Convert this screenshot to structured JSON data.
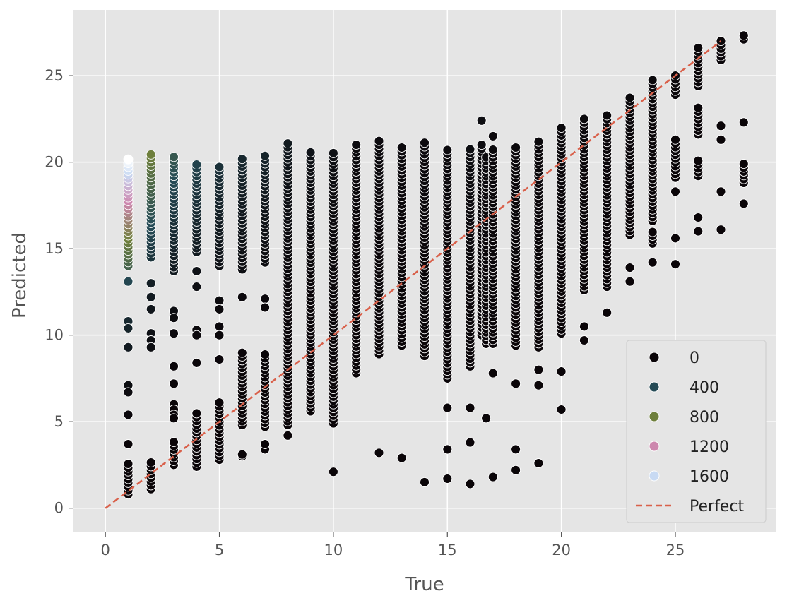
{
  "chart_data": {
    "type": "scatter",
    "title": "",
    "xlabel": "True",
    "ylabel": "Predicted",
    "xlim": [
      -1.4,
      29.4
    ],
    "ylim": [
      -1.4,
      28.8
    ],
    "xticks": [
      0,
      5,
      10,
      15,
      20,
      25
    ],
    "yticks": [
      0,
      5,
      10,
      15,
      20,
      25
    ],
    "grid": true,
    "background": "#e5e5e5",
    "hue_variable": "count",
    "legend": {
      "position": "lower right",
      "entries": [
        {
          "label": "0",
          "color": "#0a0508",
          "kind": "point"
        },
        {
          "label": "400",
          "color": "#254b56",
          "kind": "point"
        },
        {
          "label": "800",
          "color": "#6e7f3c",
          "kind": "point"
        },
        {
          "label": "1200",
          "color": "#cd87ae",
          "kind": "point"
        },
        {
          "label": "1600",
          "color": "#c8daf3",
          "kind": "point"
        },
        {
          "label": "Perfect",
          "color": "#d9604a",
          "kind": "dashed-line"
        }
      ]
    },
    "reference_line": {
      "name": "Perfect",
      "from": [
        0,
        0
      ],
      "to": [
        27,
        27
      ],
      "color": "#d9604a",
      "style": "dashed"
    },
    "colormap": [
      {
        "stop": 0,
        "color": "#0a0508"
      },
      {
        "stop": 400,
        "color": "#254b56"
      },
      {
        "stop": 800,
        "color": "#6e7f3c"
      },
      {
        "stop": 1200,
        "color": "#cd87ae"
      },
      {
        "stop": 1600,
        "color": "#c8daf3"
      },
      {
        "stop": 1800,
        "color": "#ffffff"
      }
    ],
    "columns": [
      {
        "x": 1,
        "hue_range": [
          1800,
          0
        ],
        "dense": [
          [
            14.0,
            20.2
          ],
          [
            0.8,
            2.6
          ]
        ],
        "singles": [
          13.1,
          10.8,
          10.4,
          9.3,
          7.1,
          6.7,
          5.4,
          3.7
        ]
      },
      {
        "x": 2,
        "hue_range": [
          800,
          0
        ],
        "dense": [
          [
            14.5,
            20.6
          ],
          [
            1.1,
            2.8
          ]
        ],
        "singles": [
          13.0,
          12.2,
          11.5,
          10.1,
          9.7,
          9.3
        ]
      },
      {
        "x": 3,
        "hue_range": [
          500,
          0
        ],
        "dense": [
          [
            13.7,
            20.5
          ],
          [
            2.5,
            3.9
          ]
        ],
        "singles": [
          11.4,
          11.0,
          10.1,
          8.2,
          7.2,
          6.0,
          5.7,
          5.4,
          5.2
        ]
      },
      {
        "x": 4,
        "hue_range": [
          350,
          0
        ],
        "dense": [
          [
            14.8,
            20.0
          ],
          [
            2.4,
            5.6
          ]
        ],
        "singles": [
          13.7,
          12.8,
          10.3,
          10.0,
          8.4
        ]
      },
      {
        "x": 5,
        "hue_range": [
          250,
          0
        ],
        "dense": [
          [
            14.0,
            19.8
          ],
          [
            2.8,
            6.2
          ]
        ],
        "singles": [
          12.0,
          11.5,
          10.5,
          10.0,
          8.6
        ]
      },
      {
        "x": 6,
        "hue_range": [
          200,
          0
        ],
        "dense": [
          [
            13.8,
            20.3
          ],
          [
            4.8,
            9.0
          ]
        ],
        "singles": [
          12.2,
          3.0,
          3.1
        ]
      },
      {
        "x": 7,
        "hue_range": [
          180,
          0
        ],
        "dense": [
          [
            14.2,
            20.4
          ],
          [
            4.7,
            9.0
          ]
        ],
        "singles": [
          12.1,
          11.6,
          3.4,
          3.7
        ]
      },
      {
        "x": 8,
        "hue_range": [
          120,
          0
        ],
        "dense": [
          [
            4.8,
            21.1
          ]
        ],
        "singles": [
          4.2
        ]
      },
      {
        "x": 9,
        "hue_range": [
          80,
          0
        ],
        "dense": [
          [
            5.6,
            20.7
          ]
        ],
        "singles": []
      },
      {
        "x": 10,
        "hue_range": [
          60,
          0
        ],
        "dense": [
          [
            4.9,
            20.6
          ]
        ],
        "singles": [
          2.1
        ]
      },
      {
        "x": 11,
        "hue_range": [
          40,
          0
        ],
        "dense": [
          [
            7.8,
            21.0
          ]
        ],
        "singles": []
      },
      {
        "x": 12,
        "hue_range": [
          30,
          0
        ],
        "dense": [
          [
            8.9,
            21.3
          ]
        ],
        "singles": [
          3.2
        ]
      },
      {
        "x": 13,
        "hue_range": [
          30,
          0
        ],
        "dense": [
          [
            9.4,
            21.0
          ]
        ],
        "singles": [
          2.9
        ]
      },
      {
        "x": 14,
        "hue_range": [
          30,
          0
        ],
        "dense": [
          [
            8.8,
            21.3
          ]
        ],
        "singles": [
          1.5
        ]
      },
      {
        "x": 15,
        "hue_range": [
          30,
          0
        ],
        "dense": [
          [
            7.5,
            20.9
          ]
        ],
        "singles": [
          5.8,
          3.4,
          1.7
        ]
      },
      {
        "x": 16,
        "hue_range": [
          50,
          0
        ],
        "dense": [
          [
            8.2,
            20.9
          ]
        ],
        "singles": [
          5.8,
          3.8,
          1.4
        ]
      },
      {
        "x": 16.5,
        "hue_range": [
          60,
          0
        ],
        "dense": [
          [
            10.0,
            21.0
          ]
        ],
        "singles": [
          22.4
        ]
      },
      {
        "x": 16.7,
        "hue_range": [
          40,
          0
        ],
        "dense": [
          [
            9.5,
            20.3
          ]
        ],
        "singles": [
          5.2
        ]
      },
      {
        "x": 17,
        "hue_range": [
          30,
          0
        ],
        "dense": [
          [
            9.5,
            20.9
          ]
        ],
        "singles": [
          21.5,
          7.8,
          1.8
        ]
      },
      {
        "x": 18,
        "hue_range": [
          20,
          0
        ],
        "dense": [
          [
            9.4,
            20.9
          ]
        ],
        "singles": [
          7.2,
          3.4,
          2.2
        ]
      },
      {
        "x": 19,
        "hue_range": [
          20,
          0
        ],
        "dense": [
          [
            9.3,
            21.3
          ]
        ],
        "singles": [
          8.0,
          7.1,
          2.6
        ]
      },
      {
        "x": 20,
        "hue_range": [
          20,
          0
        ],
        "dense": [
          [
            10.1,
            22.0
          ]
        ],
        "singles": [
          7.9,
          5.7
        ]
      },
      {
        "x": 21,
        "hue_range": [
          20,
          0
        ],
        "dense": [
          [
            12.6,
            22.5
          ]
        ],
        "singles": [
          10.5,
          9.7
        ]
      },
      {
        "x": 22,
        "hue_range": [
          20,
          0
        ],
        "dense": [
          [
            12.8,
            22.8
          ]
        ],
        "singles": [
          11.3
        ]
      },
      {
        "x": 23,
        "hue_range": [
          20,
          0
        ],
        "dense": [
          [
            15.8,
            23.8
          ]
        ],
        "singles": [
          13.9,
          13.1
        ]
      },
      {
        "x": 24,
        "hue_range": [
          20,
          0
        ],
        "dense": [
          [
            16.6,
            24.9
          ],
          [
            15.3,
            16.0
          ]
        ],
        "singles": [
          14.2
        ]
      },
      {
        "x": 25,
        "hue_range": [
          20,
          0
        ],
        "dense": [
          [
            23.9,
            25.2
          ],
          [
            19.1,
            21.4
          ]
        ],
        "singles": [
          18.3,
          15.6,
          14.1
        ]
      },
      {
        "x": 26,
        "hue_range": [
          10,
          0
        ],
        "dense": [
          [
            24.4,
            26.6
          ],
          [
            19.2,
            20.2
          ],
          [
            21.6,
            23.3
          ]
        ],
        "singles": [
          16.8,
          16.0
        ]
      },
      {
        "x": 27,
        "hue_range": [
          10,
          0
        ],
        "dense": [
          [
            25.9,
            27.0
          ]
        ],
        "singles": [
          22.1,
          21.3,
          18.3,
          16.1
        ]
      },
      {
        "x": 28,
        "hue_range": [
          10,
          0
        ],
        "dense": [
          [
            27.1,
            27.5
          ],
          [
            18.8,
            20.0
          ]
        ],
        "singles": [
          22.3,
          17.6
        ]
      }
    ]
  }
}
